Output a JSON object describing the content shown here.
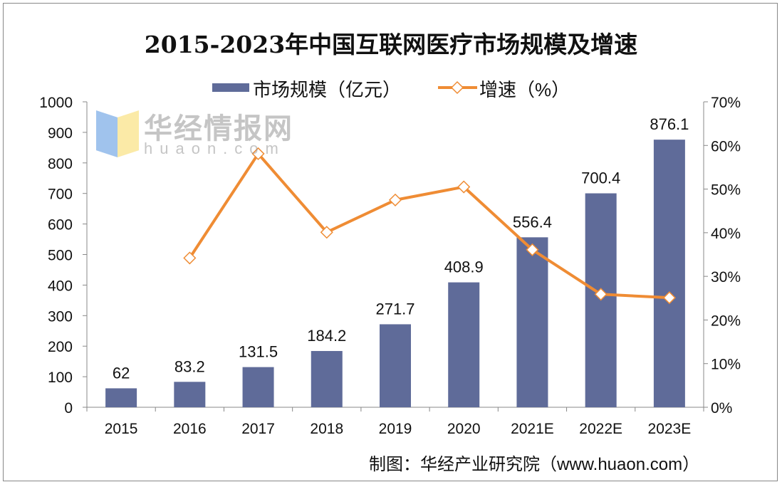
{
  "chart_data": {
    "type": "bar+line",
    "title": "2015-2023年中国互联网医疗市场规模及增速",
    "categories": [
      "2015",
      "2016",
      "2017",
      "2018",
      "2019",
      "2020",
      "2021E",
      "2022E",
      "2023E"
    ],
    "series": [
      {
        "name": "市场规模（亿元）",
        "type": "bar",
        "axis": "left",
        "color": "#5f6b99",
        "values": [
          62,
          83.2,
          131.5,
          184.2,
          271.7,
          408.9,
          556.4,
          700.4,
          876.1
        ],
        "labels": [
          "62",
          "83.2",
          "131.5",
          "184.2",
          "271.7",
          "408.9",
          "556.4",
          "700.4",
          "876.1"
        ]
      },
      {
        "name": "增速（%）",
        "type": "line",
        "axis": "right",
        "color": "#ef8c34",
        "marker": "diamond-hollow",
        "values": [
          null,
          34.2,
          58.1,
          40.1,
          47.5,
          50.5,
          36.1,
          25.9,
          25.1
        ]
      }
    ],
    "y_left": {
      "range": [
        0,
        1000
      ],
      "ticks": [
        "0",
        "100",
        "200",
        "300",
        "400",
        "500",
        "600",
        "700",
        "800",
        "900",
        "1000"
      ]
    },
    "y_right": {
      "range": [
        0,
        70
      ],
      "ticks": [
        "0%",
        "10%",
        "20%",
        "30%",
        "40%",
        "50%",
        "60%",
        "70%"
      ]
    },
    "legend_position": "top-center",
    "grid": false
  },
  "source": "制图：华经产业研究院（www.huaon.com）",
  "watermark": {
    "text": "华经情报网",
    "sub": "huaon.com"
  }
}
